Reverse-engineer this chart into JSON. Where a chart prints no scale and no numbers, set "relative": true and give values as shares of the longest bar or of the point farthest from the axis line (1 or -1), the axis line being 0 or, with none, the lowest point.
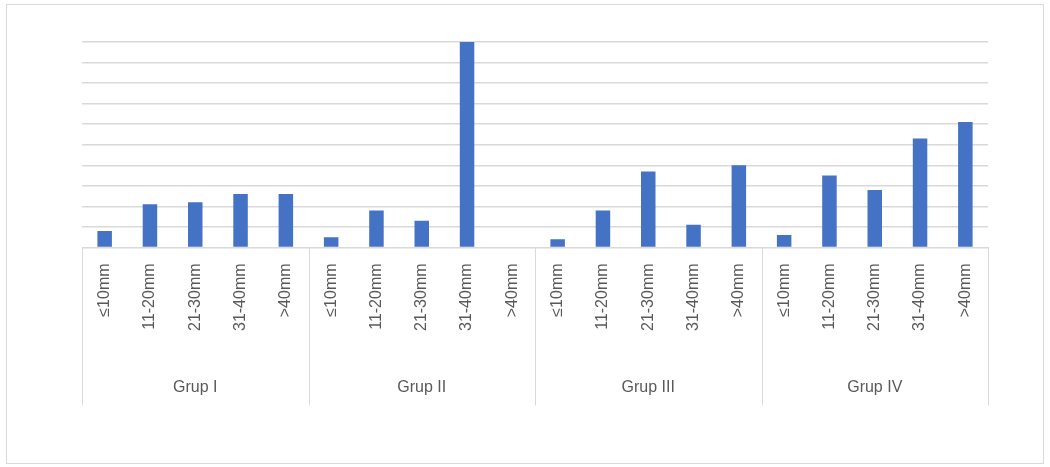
{
  "chart_data": {
    "type": "bar",
    "relative": true,
    "grid": "y",
    "legend": false,
    "categories": [
      "≤10mm",
      "11-20mm",
      "21-30mm",
      "31-40mm",
      ">40mm",
      "≤10mm",
      "11-20mm",
      "21-30mm",
      "31-40mm",
      ">40mm",
      "≤10mm",
      "11-20mm",
      "21-30mm",
      "31-40mm",
      ">40mm",
      "≤10mm",
      "11-20mm",
      "21-30mm",
      "31-40mm",
      ">40mm"
    ],
    "values": [
      0.08,
      0.21,
      0.22,
      0.26,
      0.26,
      0.05,
      0.18,
      0.13,
      1,
      0,
      0.04,
      0.18,
      0.37,
      0.11,
      0.4,
      0.06,
      0.35,
      0.28,
      0.53,
      0.61
    ],
    "color": "#4472c4",
    "annotations": [
      "Grup I",
      "Grup II",
      "Grup III",
      "Grup IV"
    ]
  }
}
